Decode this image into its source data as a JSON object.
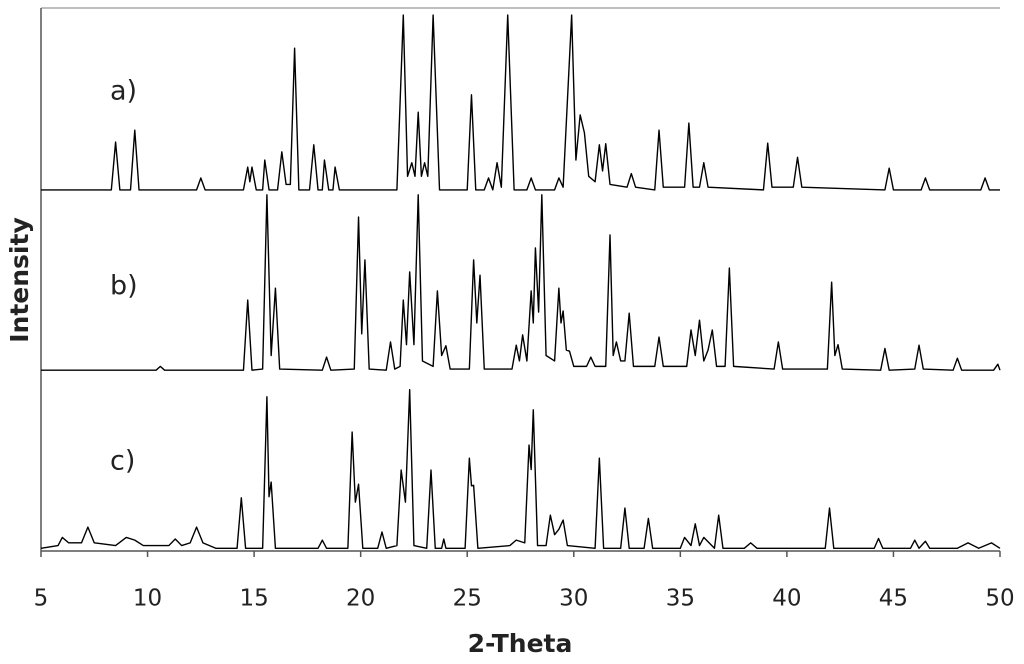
{
  "chart_data": {
    "type": "line",
    "xlabel": "2-Theta",
    "ylabel": "Intensity",
    "annotations": [
      "a)",
      "b)",
      "c)"
    ],
    "xlim": [
      5,
      50
    ],
    "xticks": [
      5,
      10,
      15,
      20,
      25,
      30,
      35,
      40,
      45,
      50
    ],
    "ylim": [
      0,
      100
    ],
    "series": [
      {
        "color": "#000000",
        "x": [
          5,
          8.3,
          8.5,
          8.7,
          9.2,
          9.4,
          9.6,
          12.3,
          12.5,
          12.7,
          14.5,
          14.7,
          14.8,
          14.9,
          15.1,
          15.4,
          15.5,
          15.7,
          16.1,
          16.3,
          16.5,
          16.7,
          16.9,
          17.1,
          17.6,
          17.8,
          18.0,
          18.2,
          18.3,
          18.5,
          18.7,
          18.8,
          19.0,
          21.7,
          22.0,
          22.2,
          22.4,
          22.55,
          22.7,
          22.85,
          23.0,
          23.15,
          23.4,
          23.7,
          25.0,
          25.2,
          25.4,
          25.8,
          26.0,
          26.2,
          26.4,
          26.6,
          26.9,
          27.2,
          27.8,
          28.0,
          28.2,
          29.1,
          29.3,
          29.5,
          29.9,
          30.1,
          30.3,
          30.5,
          30.7,
          31.0,
          31.2,
          31.35,
          31.5,
          31.7,
          32.5,
          32.7,
          32.9,
          33.8,
          34.0,
          34.2,
          35.2,
          35.4,
          35.6,
          35.9,
          36.1,
          36.3,
          38.9,
          39.1,
          39.3,
          40.3,
          40.5,
          40.7,
          44.6,
          44.8,
          45.0,
          46.3,
          46.5,
          46.7,
          49.1,
          49.3,
          49.5,
          50
        ],
        "values": [
          66.5,
          66.5,
          75.3,
          66.5,
          66.5,
          77.5,
          66.5,
          66.5,
          68.7,
          66.5,
          66.5,
          70.7,
          68,
          70.7,
          66.5,
          66.5,
          72,
          66.5,
          66.5,
          73.5,
          67.5,
          67.5,
          92.6,
          66.5,
          66.5,
          74.8,
          66.5,
          66.5,
          72,
          66.5,
          66.5,
          70.7,
          66.5,
          66.5,
          98.7,
          69,
          71.5,
          69,
          80.8,
          69,
          71.5,
          69,
          98.7,
          66.5,
          66.5,
          84,
          66.5,
          66.5,
          68.7,
          66.5,
          71.5,
          67,
          98.7,
          66.5,
          66.5,
          68.7,
          66.5,
          66.5,
          68.7,
          67,
          98.7,
          72,
          80.3,
          77,
          69,
          68,
          74.8,
          70,
          75,
          67.5,
          67,
          69.5,
          67,
          66.5,
          77.5,
          67,
          67,
          78.8,
          67,
          67,
          71.5,
          67,
          66.5,
          75.1,
          67,
          67,
          72.5,
          67,
          66.5,
          70.5,
          66.5,
          66.5,
          68.7,
          66.5,
          66.5,
          68.7,
          66.5,
          66.5
        ]
      },
      {
        "color": "#000000",
        "x": [
          5,
          10.4,
          10.6,
          10.8,
          14.5,
          14.7,
          14.9,
          15.4,
          15.6,
          15.8,
          16.0,
          16.2,
          18.2,
          18.4,
          18.6,
          19.7,
          19.9,
          20.05,
          20.2,
          20.4,
          21.2,
          21.4,
          21.6,
          21.85,
          22.0,
          22.15,
          22.3,
          22.5,
          22.7,
          22.9,
          23.4,
          23.6,
          23.8,
          24.0,
          24.2,
          25.1,
          25.3,
          25.45,
          25.6,
          25.8,
          27.1,
          27.3,
          27.45,
          27.6,
          27.8,
          28.0,
          28.1,
          28.2,
          28.35,
          28.5,
          28.7,
          29.1,
          29.3,
          29.4,
          29.5,
          29.65,
          29.8,
          30.0,
          30.6,
          30.8,
          31.0,
          31.5,
          31.7,
          31.85,
          32.0,
          32.2,
          32.4,
          32.6,
          32.8,
          33.8,
          34.0,
          34.2,
          35.3,
          35.5,
          35.7,
          35.9,
          36.1,
          36.3,
          36.5,
          36.7,
          37.1,
          37.3,
          37.5,
          39.4,
          39.6,
          39.8,
          41.9,
          42.1,
          42.25,
          42.4,
          42.6,
          44.4,
          44.6,
          44.8,
          46.0,
          46.2,
          46.4,
          47.8,
          48.0,
          48.2,
          49.7,
          49.9,
          50
        ],
        "values": [
          33.3,
          33.3,
          34,
          33.3,
          33.3,
          46.2,
          33.3,
          33.5,
          65.6,
          36,
          48.4,
          33.5,
          33.3,
          35.7,
          33.3,
          33.5,
          61.5,
          40,
          53.6,
          33.5,
          33.3,
          38.5,
          33.5,
          34,
          46.2,
          38,
          51.4,
          38,
          65.6,
          35,
          34,
          47.9,
          36,
          37.8,
          33.5,
          33.5,
          53.6,
          42,
          50.8,
          33.5,
          33.5,
          37.9,
          35,
          39.8,
          35,
          47.9,
          42,
          55.8,
          44,
          65.6,
          36,
          35,
          48.4,
          42,
          44.2,
          37,
          36.8,
          34,
          34,
          35.7,
          34,
          34,
          58.2,
          36,
          38.5,
          35,
          35,
          43.8,
          34,
          34,
          39.4,
          34,
          34,
          40.7,
          36,
          42.5,
          35,
          37,
          40.7,
          34,
          34,
          52.1,
          34,
          33.5,
          38.5,
          33.5,
          33.5,
          49.5,
          36,
          38,
          33.5,
          33.3,
          37.3,
          33.3,
          33.5,
          37.9,
          33.5,
          33.3,
          35.5,
          33.3,
          33.3,
          34.4,
          33.3
        ]
      },
      {
        "color": "#000000",
        "x": [
          5,
          5.8,
          6.0,
          6.3,
          6.9,
          7.2,
          7.5,
          8.5,
          9.0,
          9.4,
          9.8,
          11.0,
          11.3,
          11.6,
          12.0,
          12.3,
          12.6,
          13.2,
          14.2,
          14.4,
          14.6,
          15.4,
          15.6,
          15.7,
          15.8,
          16.0,
          18.0,
          18.2,
          18.4,
          19.4,
          19.6,
          19.75,
          19.9,
          20.1,
          20.8,
          21.0,
          21.2,
          21.7,
          21.9,
          22.1,
          22.3,
          22.5,
          23.1,
          23.3,
          23.5,
          23.8,
          23.9,
          24.0,
          24.9,
          25.1,
          25.2,
          25.3,
          25.5,
          27.0,
          27.3,
          27.7,
          27.9,
          28.0,
          28.1,
          28.3,
          28.7,
          28.9,
          29.1,
          29.3,
          29.5,
          29.7,
          31.0,
          31.2,
          31.4,
          32.2,
          32.4,
          32.6,
          33.3,
          33.5,
          33.7,
          35.0,
          35.2,
          35.5,
          35.7,
          35.9,
          36.1,
          36.6,
          36.8,
          37.0,
          38.0,
          38.3,
          38.6,
          41.8,
          42.0,
          42.2,
          44.1,
          44.3,
          44.5,
          45.8,
          46.0,
          46.2,
          46.5,
          46.7,
          48.0,
          48.5,
          49.0,
          49.6,
          50
        ],
        "values": [
          0.5,
          1,
          2.5,
          1.5,
          1.5,
          4.4,
          1.5,
          1,
          2.5,
          2,
          1,
          1,
          2.2,
          1,
          1.5,
          4.4,
          1.5,
          0.5,
          0.5,
          9.8,
          0.5,
          0.5,
          28.4,
          10,
          12.7,
          0.5,
          0.5,
          2,
          0.5,
          0.5,
          21.9,
          9,
          12.3,
          0.5,
          0.5,
          3.5,
          0.5,
          1,
          14.9,
          9,
          29.7,
          1,
          0.5,
          14.9,
          0.5,
          0.5,
          2.2,
          0.5,
          0.5,
          17.1,
          12,
          12.1,
          0.5,
          1,
          2,
          1.5,
          19.5,
          15,
          26,
          1,
          1,
          6.6,
          3,
          4,
          5.7,
          1,
          0.5,
          17.1,
          0.5,
          0.5,
          7.9,
          0.5,
          0.5,
          6,
          0.5,
          0.5,
          2.5,
          1,
          5,
          1,
          2.5,
          0.5,
          6.6,
          0.5,
          0.5,
          1.5,
          0.5,
          0.5,
          7.9,
          0.5,
          0.5,
          2.3,
          0.5,
          0.5,
          2,
          0.5,
          1.8,
          0.5,
          0.5,
          1.5,
          0.5,
          1.5,
          0.5
        ]
      }
    ]
  }
}
